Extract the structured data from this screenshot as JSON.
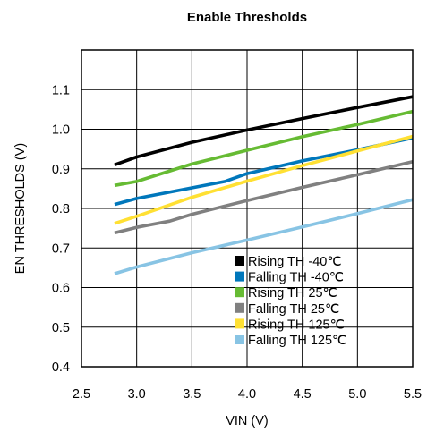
{
  "chart_data": {
    "type": "line",
    "title": "Enable Thresholds",
    "xlabel": "VIN (V)",
    "ylabel": "EN THRESHOLDS (V)",
    "xlim": [
      2.5,
      5.5
    ],
    "ylim": [
      0.4,
      1.2
    ],
    "xticks": [
      "2.5",
      "3.0",
      "3.5",
      "4.0",
      "4.5",
      "5.0",
      "5.5"
    ],
    "xtick_values": [
      2.5,
      3.0,
      3.5,
      4.0,
      4.5,
      5.0,
      5.5
    ],
    "yticks": [
      "0.4",
      "0.5",
      "0.6",
      "0.7",
      "0.8",
      "0.9",
      "1.0",
      "1.1"
    ],
    "ytick_values": [
      0.4,
      0.5,
      0.6,
      0.7,
      0.8,
      0.9,
      1.0,
      1.1
    ],
    "grid": true,
    "legend_position": "bottom-right",
    "series": [
      {
        "name": "Rising TH -40℃",
        "color": "#000000",
        "x": [
          2.8,
          3.0,
          3.5,
          4.0,
          4.5,
          5.0,
          5.5
        ],
        "y": [
          0.91,
          0.93,
          0.967,
          0.998,
          1.027,
          1.055,
          1.082
        ]
      },
      {
        "name": "Falling TH -40℃",
        "color": "#0077bb",
        "x": [
          2.8,
          3.0,
          3.5,
          3.8,
          4.0,
          4.5,
          5.0,
          5.5
        ],
        "y": [
          0.81,
          0.825,
          0.852,
          0.868,
          0.888,
          0.92,
          0.948,
          0.978
        ]
      },
      {
        "name": "Rising TH 25℃",
        "color": "#66bb33",
        "x": [
          2.8,
          3.0,
          3.5,
          4.0,
          4.5,
          5.0,
          5.5
        ],
        "y": [
          0.858,
          0.868,
          0.912,
          0.947,
          0.981,
          1.012,
          1.045
        ]
      },
      {
        "name": "Falling TH 25℃",
        "color": "#808080",
        "x": [
          2.8,
          3.0,
          3.3,
          3.5,
          4.0,
          4.5,
          5.0,
          5.5
        ],
        "y": [
          0.738,
          0.752,
          0.768,
          0.785,
          0.82,
          0.853,
          0.885,
          0.918
        ]
      },
      {
        "name": "Rising TH 125℃",
        "color": "#ffe033",
        "x": [
          2.8,
          3.0,
          3.5,
          4.0,
          4.5,
          5.0,
          5.5
        ],
        "y": [
          0.762,
          0.78,
          0.828,
          0.869,
          0.908,
          0.945,
          0.982
        ]
      },
      {
        "name": "Falling TH 125℃",
        "color": "#88c4e4",
        "x": [
          2.8,
          3.0,
          3.5,
          4.0,
          4.5,
          5.0,
          5.5
        ],
        "y": [
          0.635,
          0.652,
          0.688,
          0.72,
          0.753,
          0.787,
          0.822
        ]
      }
    ]
  }
}
